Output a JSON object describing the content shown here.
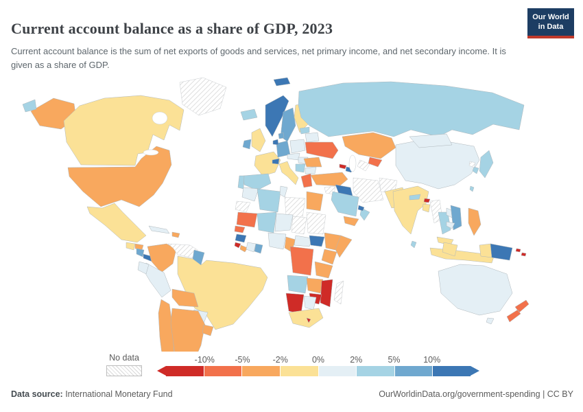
{
  "header": {
    "title": "Current account balance as a share of GDP, 2023",
    "subtitle": "Current account balance is the sum of net exports of goods and services, net primary income, and net secondary income. It is given as a share of GDP.",
    "logo": {
      "line1": "Our World",
      "line2": "in Data",
      "bg_color": "#1d3d63",
      "accent_color": "#c0392b"
    }
  },
  "legend": {
    "no_data_label": "No data"
  },
  "footer": {
    "source_label": "Data source:",
    "source_value": " International Monetary Fund",
    "credit": "OurWorldinData.org/government-spending | CC BY"
  },
  "chart_data": {
    "type": "heatmap",
    "subtype": "choropleth-world-map",
    "title": "Current account balance as a share of GDP, 2023",
    "unit": "% of GDP",
    "legend_position": "bottom",
    "legend_ticks": [
      "-10%",
      "-5%",
      "-2%",
      "0%",
      "2%",
      "5%",
      "10%"
    ],
    "bands": [
      {
        "id": "lt-n10",
        "range": "less than -10%",
        "color": "#cf2b27"
      },
      {
        "id": "n10-n5",
        "range": "-10% to -5%",
        "color": "#f2714b"
      },
      {
        "id": "n5-n2",
        "range": "-5% to -2%",
        "color": "#f8a85e"
      },
      {
        "id": "n2-0",
        "range": "-2% to 0%",
        "color": "#fbe196"
      },
      {
        "id": "p0-2",
        "range": "0% to 2%",
        "color": "#e4eff5"
      },
      {
        "id": "p2-5",
        "range": "2% to 5%",
        "color": "#a5d3e4"
      },
      {
        "id": "p5-10",
        "range": "5% to 10%",
        "color": "#6fa8cf"
      },
      {
        "id": "gt10",
        "range": "more than 10%",
        "color": "#3c77b4"
      },
      {
        "id": "no-data",
        "range": "No data",
        "color": "hatch"
      }
    ],
    "countries": {
      "greenland": "no-data",
      "canada": "n2-0",
      "usa": "n5-n2",
      "mexico": "n2-0",
      "guatemala": "n2-0",
      "honduras": "n5-n2",
      "nicaragua": "p5-10",
      "panama": "gt10",
      "cuba": "p0-2",
      "dominican-republic": "n5-n2",
      "colombia": "n5-n2",
      "venezuela": "no-data",
      "guyana": "p5-10",
      "brazil": "n2-0",
      "peru": "p0-2",
      "ecuador": "p0-2",
      "bolivia": "n5-n2",
      "paraguay": "p0-2",
      "chile": "n5-n2",
      "argentina": "n5-n2",
      "uruguay": "n5-n2",
      "iceland": "p2-5",
      "norway": "gt10",
      "sweden": "p5-10",
      "finland": "n2-0",
      "united-kingdom": "n2-0",
      "ireland": "p5-10",
      "france": "n2-0",
      "spain": "p2-5",
      "portugal": "p2-5",
      "germany": "p5-10",
      "netherlands": "gt10",
      "denmark": "p5-10",
      "switzerland": "gt10",
      "italy": "n2-0",
      "poland": "p0-2",
      "czechia": "p0-2",
      "hungary": "p0-2",
      "croatia": "p2-5",
      "greece": "n10-n5",
      "bulgaria": "p0-2",
      "romania": "n5-n2",
      "ukraine": "n10-n5",
      "belarus": "p0-2",
      "lithuania": "p2-5",
      "russia": "p2-5",
      "kazakhstan": "n5-n2",
      "uzbekistan": "n10-n5",
      "turkmenistan": "no-data",
      "georgia": "lt-n10",
      "azerbaijan": "gt10",
      "turkey": "n5-n2",
      "syria": "no-data",
      "iraq": "gt10",
      "iran": "no-data",
      "afghanistan": "no-data",
      "pakistan": "n2-0",
      "saudi-arabia": "p2-5",
      "yemen": "n5-n2",
      "oman": "p2-5",
      "united-arab-emirates": "gt10",
      "india": "n2-0",
      "nepal": "p2-5",
      "bhutan": "lt-n10",
      "bangladesh": "n2-0",
      "sri-lanka": "p2-5",
      "myanmar": "no-data",
      "thailand": "p2-5",
      "laos": "p0-2",
      "vietnam": "p5-10",
      "cambodia": "p0-2",
      "malaysia": "n2-0",
      "indonesia": "n2-0",
      "philippines": "n5-n2",
      "china": "p0-2",
      "mongolia": "p0-2",
      "japan": "p2-5",
      "south-korea": "p2-5",
      "north-korea": "no-data",
      "taiwan": "p2-5",
      "papua-new-guinea": "gt10",
      "solomon-islands": "lt-n10",
      "australia": "p0-2",
      "new-zealand": "n10-n5",
      "morocco": "p0-2",
      "western-sahara": "no-data",
      "algeria": "p2-5",
      "tunisia": "p0-2",
      "libya": "no-data",
      "egypt": "n5-n2",
      "mauritania": "n10-n5",
      "mali": "p2-5",
      "niger": "p0-2",
      "chad": "no-data",
      "sudan": "no-data",
      "senegal": "n10-n5",
      "guinea": "gt10",
      "sierra-leone": "lt-n10",
      "liberia": "n5-n2",
      "ivory-coast": "p0-2",
      "ghana": "p5-10",
      "nigeria": "p0-2",
      "cameroon": "n5-n2",
      "central-african-republic": "p0-2",
      "south-sudan": "gt10",
      "ethiopia": "n5-n2",
      "somalia": "n5-n2",
      "kenya": "n5-n2",
      "dr-congo": "n10-n5",
      "tanzania": "n5-n2",
      "angola": "p2-5",
      "zambia": "n5-n2",
      "mozambique": "lt-n10",
      "zimbabwe": "lt-n10",
      "namibia": "lt-n10",
      "botswana": "p0-2",
      "south-africa": "n2-0",
      "lesotho": "lt-n10",
      "madagascar": "no-data"
    }
  }
}
